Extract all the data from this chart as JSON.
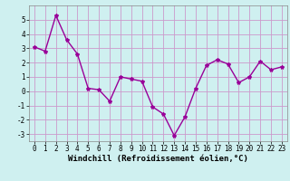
{
  "x": [
    0,
    1,
    2,
    3,
    4,
    5,
    6,
    7,
    8,
    9,
    10,
    11,
    12,
    13,
    14,
    15,
    16,
    17,
    18,
    19,
    20,
    21,
    22,
    23
  ],
  "y": [
    3.1,
    2.8,
    5.3,
    3.6,
    2.6,
    0.2,
    0.1,
    -0.7,
    1.0,
    0.85,
    0.7,
    -1.1,
    -1.6,
    -3.1,
    -1.8,
    0.2,
    1.8,
    2.2,
    1.9,
    0.6,
    1.0,
    2.1,
    1.5,
    1.7
  ],
  "line_color": "#990099",
  "marker": "*",
  "marker_size": 3,
  "xlabel": "Windchill (Refroidissement éolien,°C)",
  "ylim": [
    -3.5,
    6.0
  ],
  "xlim": [
    -0.5,
    23.5
  ],
  "yticks": [
    -3,
    -2,
    -1,
    0,
    1,
    2,
    3,
    4,
    5
  ],
  "xticks": [
    0,
    1,
    2,
    3,
    4,
    5,
    6,
    7,
    8,
    9,
    10,
    11,
    12,
    13,
    14,
    15,
    16,
    17,
    18,
    19,
    20,
    21,
    22,
    23
  ],
  "background_color": "#cff0f0",
  "grid_color": "#cc99cc",
  "tick_fontsize": 5.5,
  "label_fontsize": 6.5,
  "line_width": 1.0
}
